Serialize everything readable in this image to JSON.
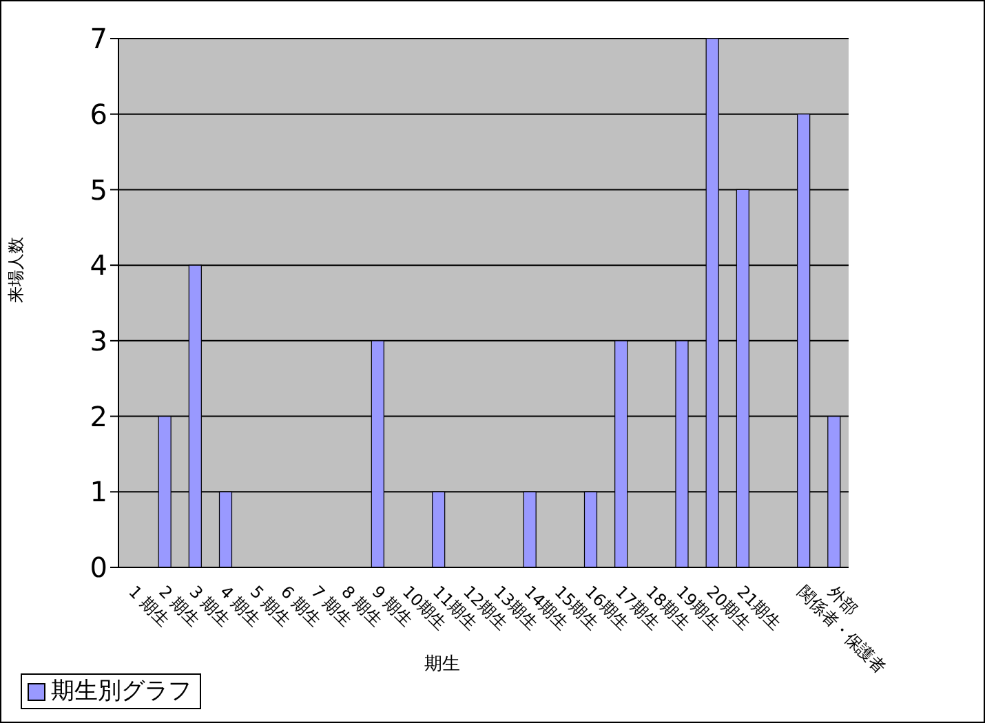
{
  "chart_data": {
    "type": "bar",
    "xlabel": "期生",
    "ylabel": "来場人数",
    "categories": [
      "1 期生",
      "2 期生",
      "3 期生",
      "4 期生",
      "5 期生",
      "6 期生",
      "7 期生",
      "8 期生",
      "9 期生",
      "10期生",
      "11期生",
      "12期生",
      "13期生",
      "14期生",
      "15期生",
      "16期生",
      "17期生",
      "18期生",
      "19期生",
      "20期生",
      "21期生",
      null,
      "関係者・保護者",
      "外部"
    ],
    "series": [
      {
        "name": "期生別グラフ",
        "color": "#9999ff",
        "values": [
          0,
          2,
          4,
          1,
          0,
          0,
          0,
          0,
          3,
          0,
          1,
          0,
          0,
          1,
          0,
          1,
          3,
          0,
          3,
          7,
          5,
          null,
          6,
          2
        ]
      }
    ],
    "ylim": [
      0,
      7
    ],
    "yticks": [
      0,
      1,
      2,
      3,
      4,
      5,
      6,
      7
    ],
    "grid": "y",
    "legend": "bottom left"
  }
}
